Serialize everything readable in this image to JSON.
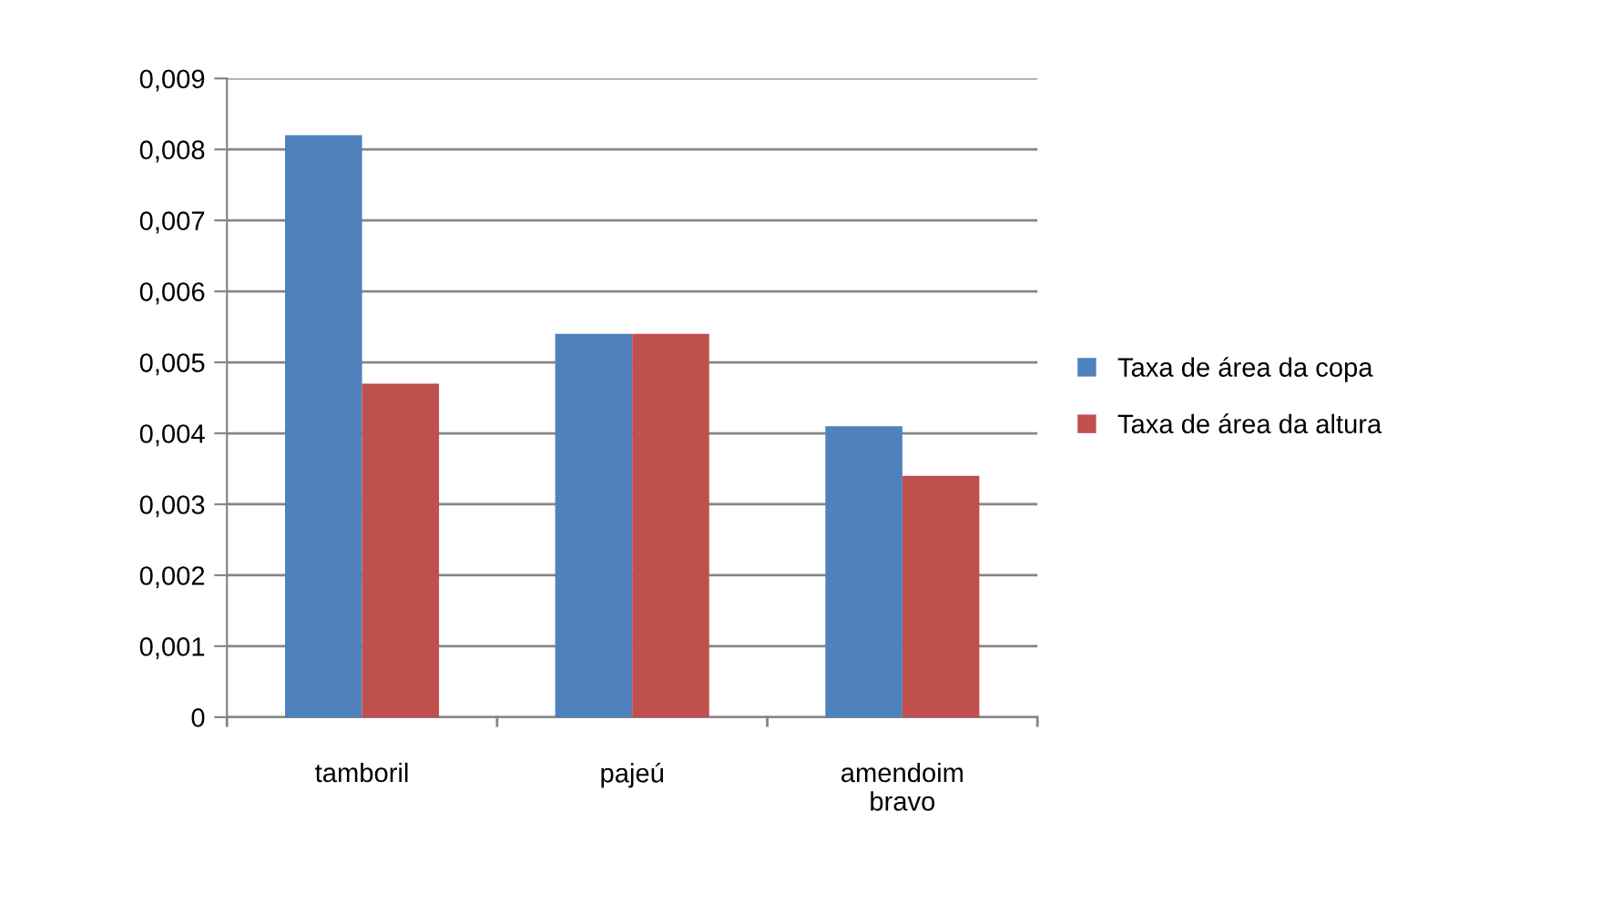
{
  "chart_data": {
    "type": "bar",
    "categories": [
      "tamboril",
      "pajeú",
      "amendoim\nbravo"
    ],
    "series": [
      {
        "name": "Taxa de área da copa",
        "color": "#4f81bd",
        "values": [
          0.0082,
          0.0054,
          0.0041
        ]
      },
      {
        "name": "Taxa de área da altura",
        "color": "#c0504d",
        "values": [
          0.0047,
          0.0054,
          0.0034
        ]
      }
    ],
    "ylim": [
      0,
      0.009
    ],
    "yticks": [
      0,
      {
        "value": 0.001,
        "label": "0,001"
      },
      {
        "value": 0.002,
        "label": "0,002"
      },
      {
        "value": 0.003,
        "label": "0,003"
      },
      {
        "value": 0.004,
        "label": "0,004"
      },
      {
        "value": 0.005,
        "label": "0,005"
      },
      {
        "value": 0.006,
        "label": "0,006"
      },
      {
        "value": 0.007,
        "label": "0,007"
      },
      {
        "value": 0.008,
        "label": "0,008"
      },
      {
        "value": 0.009,
        "label": "0,009"
      }
    ],
    "grid": "y",
    "legend": "right"
  }
}
